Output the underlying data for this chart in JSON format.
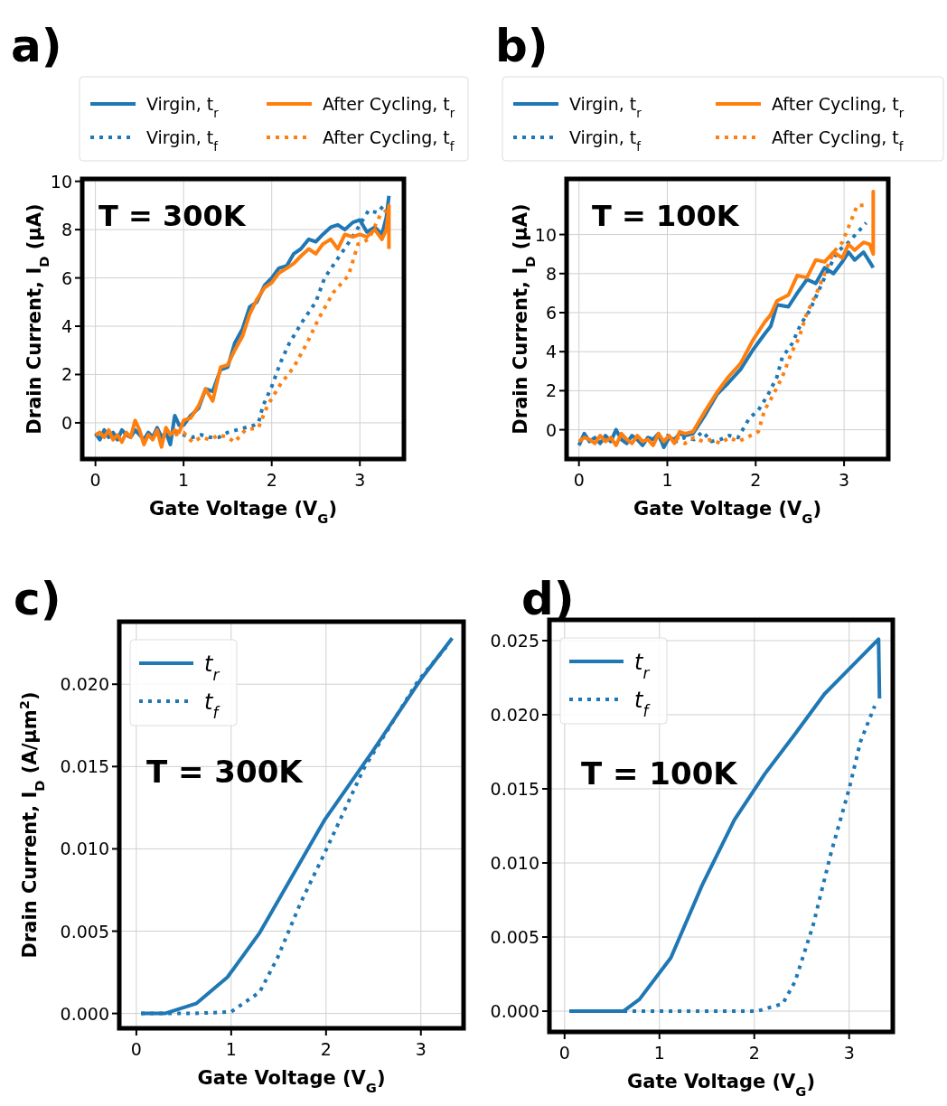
{
  "chart_data": [
    {
      "type": "line",
      "title": "a)",
      "xlabel": "Gate Voltage (V$_{G}$)",
      "ylabel": "Drain Current, I$_{D}$ (μA)",
      "annotations": [
        "T = 300K"
      ],
      "xlim": [
        -0.15,
        3.5
      ],
      "ylim": [
        -1.5,
        10.1
      ],
      "xticks": [
        0,
        1,
        2,
        3
      ],
      "yticks": [
        0,
        2,
        4,
        6,
        8,
        10
      ],
      "grid": true,
      "legend": "top",
      "series": [
        {
          "name": "Virgin, t$_{r}$",
          "color": "#1f77b4",
          "line_style": "solid",
          "x": [
            0,
            0.05,
            0.1,
            0.15,
            0.2,
            0.25,
            0.3,
            0.35,
            0.4,
            0.45,
            0.5,
            0.55,
            0.6,
            0.65,
            0.7,
            0.75,
            0.8,
            0.85,
            0.9,
            0.95,
            1.0,
            1.08,
            1.17,
            1.25,
            1.33,
            1.42,
            1.5,
            1.58,
            1.67,
            1.75,
            1.83,
            1.92,
            2.0,
            2.08,
            2.17,
            2.25,
            2.33,
            2.42,
            2.5,
            2.58,
            2.67,
            2.75,
            2.83,
            2.92,
            3.0,
            3.08,
            3.17,
            3.25,
            3.3,
            3.33
          ],
          "values": [
            -0.45,
            -0.7,
            -0.3,
            -0.6,
            -0.4,
            -0.7,
            -0.3,
            -0.5,
            -0.6,
            -0.3,
            -0.5,
            -0.7,
            -0.4,
            -0.6,
            -0.2,
            -0.6,
            -0.4,
            -0.9,
            0.3,
            -0.1,
            -0.1,
            0.3,
            0.6,
            1.4,
            1.3,
            2.2,
            2.3,
            3.3,
            3.9,
            4.8,
            5.0,
            5.7,
            6.0,
            6.4,
            6.5,
            7.0,
            7.2,
            7.6,
            7.5,
            7.8,
            8.1,
            8.2,
            8.0,
            8.3,
            8.4,
            7.9,
            8.1,
            7.8,
            8.5,
            9.4
          ]
        },
        {
          "name": "Virgin, t$_{f}$",
          "color": "#1f77b4",
          "line_style": "dotted",
          "x": [
            0.8,
            0.9,
            1.0,
            1.1,
            1.2,
            1.3,
            1.4,
            1.5,
            1.6,
            1.7,
            1.8,
            1.85,
            1.9,
            2.0,
            2.1,
            2.2,
            2.35,
            2.5,
            2.6,
            2.75,
            2.9,
            3.0,
            3.1,
            3.2,
            3.27
          ],
          "values": [
            -0.6,
            -0.4,
            -0.5,
            -0.6,
            -0.5,
            -0.6,
            -0.6,
            -0.4,
            -0.3,
            -0.2,
            -0.1,
            0.0,
            0.7,
            1.5,
            2.5,
            3.3,
            4.2,
            5.0,
            6.0,
            6.8,
            7.6,
            8.2,
            8.8,
            8.7,
            9.0
          ]
        },
        {
          "name": "After Cycling, t$_{r}$",
          "color": "#ff7f0e",
          "line_style": "solid",
          "x": [
            0,
            0.05,
            0.1,
            0.15,
            0.2,
            0.25,
            0.3,
            0.35,
            0.4,
            0.45,
            0.5,
            0.55,
            0.6,
            0.65,
            0.7,
            0.75,
            0.8,
            0.85,
            0.9,
            0.95,
            1.0,
            1.08,
            1.17,
            1.25,
            1.33,
            1.42,
            1.5,
            1.58,
            1.67,
            1.75,
            1.83,
            1.92,
            2.0,
            2.08,
            2.17,
            2.25,
            2.33,
            2.42,
            2.5,
            2.58,
            2.67,
            2.75,
            2.83,
            2.92,
            3.0,
            3.08,
            3.17,
            3.25,
            3.3,
            3.33,
            3.33
          ],
          "values": [
            -0.5,
            -0.4,
            -0.6,
            -0.3,
            -0.7,
            -0.5,
            -0.8,
            -0.4,
            -0.6,
            0.1,
            -0.3,
            -0.9,
            -0.5,
            -0.7,
            -0.3,
            -1.0,
            -0.2,
            -0.5,
            -0.3,
            -0.4,
            0.1,
            0.2,
            0.7,
            1.4,
            0.9,
            2.3,
            2.4,
            3.0,
            3.6,
            4.5,
            5.1,
            5.6,
            5.8,
            6.2,
            6.4,
            6.6,
            6.9,
            7.2,
            7.0,
            7.4,
            7.6,
            7.2,
            7.8,
            7.7,
            7.8,
            7.7,
            8.0,
            7.6,
            8.0,
            9.0,
            7.2
          ]
        },
        {
          "name": "After Cycling, t$_{f}$",
          "color": "#ff7f0e",
          "line_style": "dotted",
          "x": [
            0.9,
            1.0,
            1.1,
            1.2,
            1.3,
            1.4,
            1.5,
            1.58,
            1.7,
            1.85,
            1.95,
            2.1,
            2.25,
            2.4,
            2.53,
            2.7,
            2.87,
            2.98,
            3.1,
            3.23,
            3.3
          ],
          "values": [
            -0.5,
            -0.4,
            -0.8,
            -0.6,
            -0.7,
            -0.5,
            -0.6,
            -0.8,
            -0.3,
            -0.2,
            0.7,
            1.6,
            2.3,
            3.3,
            4.3,
            5.4,
            6.1,
            7.4,
            7.6,
            8.6,
            8.8
          ]
        }
      ]
    },
    {
      "type": "line",
      "title": "b)",
      "xlabel": "Gate Voltage (V$_{G}$)",
      "ylabel": "Drain Current, I$_{D}$ (μA)",
      "annotations": [
        "T = 100K"
      ],
      "xlim": [
        -0.14,
        3.5
      ],
      "ylim": [
        -1.5,
        12.85
      ],
      "xticks": [
        0,
        1,
        2,
        3
      ],
      "yticks": [
        0,
        2,
        4,
        6,
        8,
        10
      ],
      "grid": true,
      "legend": "top",
      "series": [
        {
          "name": "Virgin, t$_{r}$",
          "color": "#1f77b4",
          "line_style": "solid",
          "x": [
            0,
            0.06,
            0.12,
            0.18,
            0.24,
            0.3,
            0.36,
            0.42,
            0.48,
            0.54,
            0.6,
            0.66,
            0.72,
            0.78,
            0.84,
            0.9,
            0.96,
            1.02,
            1.08,
            1.14,
            1.2,
            1.29,
            1.42,
            1.56,
            1.69,
            1.83,
            1.97,
            2.1,
            2.17,
            2.24,
            2.37,
            2.47,
            2.58,
            2.68,
            2.78,
            2.88,
            2.98,
            3.05,
            3.12,
            3.22,
            3.29,
            3.33
          ],
          "values": [
            -0.8,
            -0.2,
            -0.6,
            -0.4,
            -0.7,
            -0.3,
            -0.6,
            0.0,
            -0.5,
            -0.7,
            -0.3,
            -0.5,
            -0.8,
            -0.4,
            -0.5,
            -0.2,
            -0.9,
            -0.4,
            -0.5,
            -0.2,
            -0.3,
            -0.2,
            0.7,
            1.8,
            2.4,
            3.1,
            4.1,
            4.9,
            5.3,
            6.4,
            6.3,
            7.0,
            7.7,
            7.5,
            8.3,
            8.0,
            8.6,
            9.1,
            8.7,
            9.1,
            8.6,
            8.3
          ]
        },
        {
          "name": "Virgin, t$_{f}$",
          "color": "#1f77b4",
          "line_style": "dotted",
          "x": [
            0.9,
            1.0,
            1.1,
            1.2,
            1.3,
            1.4,
            1.5,
            1.6,
            1.7,
            1.8,
            1.93,
            2.03,
            2.14,
            2.24,
            2.3,
            2.41,
            2.51,
            2.61,
            2.71,
            2.81,
            2.92,
            3.05,
            3.15,
            3.25
          ],
          "values": [
            -0.5,
            -0.3,
            -0.6,
            -0.4,
            -0.5,
            -0.1,
            -0.6,
            -0.5,
            -0.3,
            -0.4,
            0.6,
            1.0,
            1.8,
            2.7,
            3.7,
            4.4,
            5.4,
            6.1,
            7.1,
            8.1,
            9.1,
            9.6,
            10.1,
            10.6
          ]
        },
        {
          "name": "After Cycling, t$_{r}$",
          "color": "#ff7f0e",
          "line_style": "solid",
          "x": [
            0,
            0.06,
            0.12,
            0.18,
            0.24,
            0.3,
            0.36,
            0.42,
            0.48,
            0.54,
            0.6,
            0.66,
            0.72,
            0.78,
            0.84,
            0.9,
            0.96,
            1.02,
            1.08,
            1.14,
            1.2,
            1.29,
            1.42,
            1.56,
            1.69,
            1.83,
            1.97,
            2.1,
            2.17,
            2.24,
            2.37,
            2.47,
            2.58,
            2.68,
            2.78,
            2.88,
            2.98,
            3.05,
            3.12,
            3.22,
            3.29,
            3.33,
            3.33,
            3.33
          ],
          "values": [
            -0.6,
            -0.4,
            -0.5,
            -0.7,
            -0.3,
            -0.6,
            -0.4,
            -0.8,
            -0.2,
            -0.5,
            -0.7,
            -0.3,
            -0.6,
            -0.5,
            -0.8,
            -0.2,
            -0.6,
            -0.3,
            -0.7,
            -0.1,
            -0.2,
            -0.1,
            0.9,
            1.9,
            2.7,
            3.4,
            4.6,
            5.5,
            5.9,
            6.6,
            6.9,
            7.9,
            7.8,
            8.7,
            8.6,
            9.1,
            8.8,
            9.5,
            9.2,
            9.6,
            9.5,
            9.0,
            12.2,
            9.0
          ]
        },
        {
          "name": "After Cycling, t$_{f}$",
          "color": "#ff7f0e",
          "line_style": "dotted",
          "x": [
            1.1,
            1.2,
            1.3,
            1.4,
            1.5,
            1.6,
            1.7,
            1.8,
            1.9,
            2.03,
            2.1,
            2.2,
            2.3,
            2.41,
            2.49,
            2.58,
            2.68,
            2.78,
            2.88,
            2.98,
            3.07,
            3.15,
            3.25
          ],
          "values": [
            -0.4,
            -0.7,
            -0.4,
            -0.6,
            -0.5,
            -0.7,
            -0.4,
            -0.6,
            -0.4,
            -0.1,
            1.0,
            1.8,
            2.7,
            4.0,
            4.7,
            6.0,
            6.9,
            8.0,
            9.1,
            9.6,
            10.6,
            11.5,
            11.5
          ]
        }
      ]
    },
    {
      "type": "line",
      "title": "c)",
      "xlabel": "Gate Voltage (V$_{G}$)",
      "ylabel": "Drain Current, I$_{D}$ (A/μm$^{2}$)",
      "annotations": [
        "T = 300K"
      ],
      "xlim": [
        -0.18,
        3.45
      ],
      "ylim": [
        -0.0009,
        0.0238
      ],
      "xticks": [
        0,
        1,
        2,
        3
      ],
      "yticks": [
        {
          "value": 0,
          "label": "0.000"
        },
        {
          "value": 0.005,
          "label": "0.005"
        },
        {
          "value": 0.01,
          "label": "0.010"
        },
        {
          "value": 0.015,
          "label": "0.015"
        },
        {
          "value": 0.02,
          "label": "0.020"
        }
      ],
      "grid": true,
      "legend": "top left",
      "series": [
        {
          "name": "t$_{r}$",
          "color": "#1f77b4",
          "line_style": "solid",
          "x": [
            0.05,
            0.3,
            0.63,
            0.96,
            1.3,
            1.61,
            1.99,
            2.5,
            3.0,
            3.33
          ],
          "values": [
            0,
            0,
            0.0006,
            0.0022,
            0.0049,
            0.008,
            0.0118,
            0.016,
            0.0203,
            0.0228
          ]
        },
        {
          "name": "t$_{f}$",
          "color": "#1f77b4",
          "line_style": "dotted",
          "x": [
            0.05,
            0.3,
            0.6,
            1.0,
            1.3,
            1.49,
            1.73,
            1.99,
            2.4,
            2.97,
            3.3
          ],
          "values": [
            0,
            0,
            0,
            0.0001,
            0.0013,
            0.0034,
            0.0067,
            0.0098,
            0.0149,
            0.0202,
            0.0225
          ]
        }
      ]
    },
    {
      "type": "line",
      "title": "d)",
      "xlabel": "Gate Voltage (V$_{G}$)",
      "annotations": [
        "T = 100K"
      ],
      "xlim": [
        -0.16,
        3.46
      ],
      "ylim": [
        -0.0014,
        0.0264
      ],
      "xticks": [
        0,
        1,
        2,
        3
      ],
      "yticks": [
        {
          "value": 0,
          "label": "0.000"
        },
        {
          "value": 0.005,
          "label": "0.005"
        },
        {
          "value": 0.01,
          "label": "0.010"
        },
        {
          "value": 0.015,
          "label": "0.015"
        },
        {
          "value": 0.02,
          "label": "0.020"
        },
        {
          "value": 0.025,
          "label": "0.025"
        }
      ],
      "grid": true,
      "legend": "top left",
      "series": [
        {
          "name": "t$_{r}$",
          "color": "#1f77b4",
          "line_style": "solid",
          "x": [
            0.05,
            0.62,
            0.79,
            1.12,
            1.45,
            1.79,
            2.11,
            2.43,
            2.74,
            3.31,
            3.32
          ],
          "values": [
            0,
            0,
            0.0008,
            0.0036,
            0.0085,
            0.0129,
            0.016,
            0.0187,
            0.0214,
            0.0251,
            0.0211
          ]
        },
        {
          "name": "t$_{f}$",
          "color": "#1f77b4",
          "line_style": "dotted",
          "x": [
            0.05,
            1.0,
            2.03,
            2.3,
            2.43,
            2.62,
            2.81,
            3.0,
            3.12,
            3.27
          ],
          "values": [
            0,
            0,
            0,
            0.0005,
            0.002,
            0.0058,
            0.0107,
            0.015,
            0.0182,
            0.0206
          ]
        }
      ]
    }
  ]
}
